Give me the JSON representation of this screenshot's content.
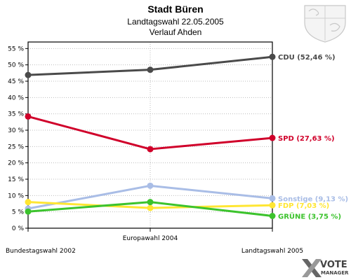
{
  "header": {
    "title": "Stadt Büren",
    "subtitle": "Landtagswahl 22.05.2005",
    "subtitle2": "Verlauf Ahden"
  },
  "logo": {
    "line1": "VOTE",
    "line2": "MANAGER",
    "icon": "vote-manager-x-icon"
  },
  "crest": {
    "icon": "coat-of-arms-icon"
  },
  "colors": {
    "grid": "#bdbdbd",
    "axis": "#000000",
    "plot_bg": "#ffffff"
  },
  "chart_data": {
    "type": "line",
    "title": "Stadt Büren",
    "x": [
      "Bundestagswahl 2002",
      "Europawahl 2004",
      "Landtagswahl 2005"
    ],
    "ylim": [
      0,
      57
    ],
    "yticks": [
      0,
      5,
      10,
      15,
      20,
      25,
      30,
      35,
      40,
      45,
      50,
      55
    ],
    "ytick_labels": [
      "0 %",
      "5 %",
      "10 %",
      "15 %",
      "20 %",
      "25 %",
      "30 %",
      "35 %",
      "40 %",
      "45 %",
      "50 %",
      "55 %"
    ],
    "grid": true,
    "legend": "end-labels-right",
    "series": [
      {
        "name": "CDU",
        "values": [
          46.9,
          48.5,
          52.46
        ],
        "color": "#4a4a4a",
        "end_label": "CDU (52,46 %)"
      },
      {
        "name": "SPD",
        "values": [
          34.2,
          24.2,
          27.63
        ],
        "color": "#d0002a",
        "end_label": "SPD (27,63 %)"
      },
      {
        "name": "Sonstige",
        "values": [
          6.0,
          13.0,
          9.13
        ],
        "color": "#a9bde6",
        "end_label": "Sonstige (9,13 %)"
      },
      {
        "name": "FDP",
        "values": [
          8.0,
          6.2,
          7.03
        ],
        "color": "#ffe633",
        "end_label": "FDP (7,03 %)"
      },
      {
        "name": "GRÜNE",
        "values": [
          5.1,
          8.0,
          3.75
        ],
        "color": "#3cc32d",
        "end_label": "GRÜNE (3,75 %)"
      }
    ]
  }
}
